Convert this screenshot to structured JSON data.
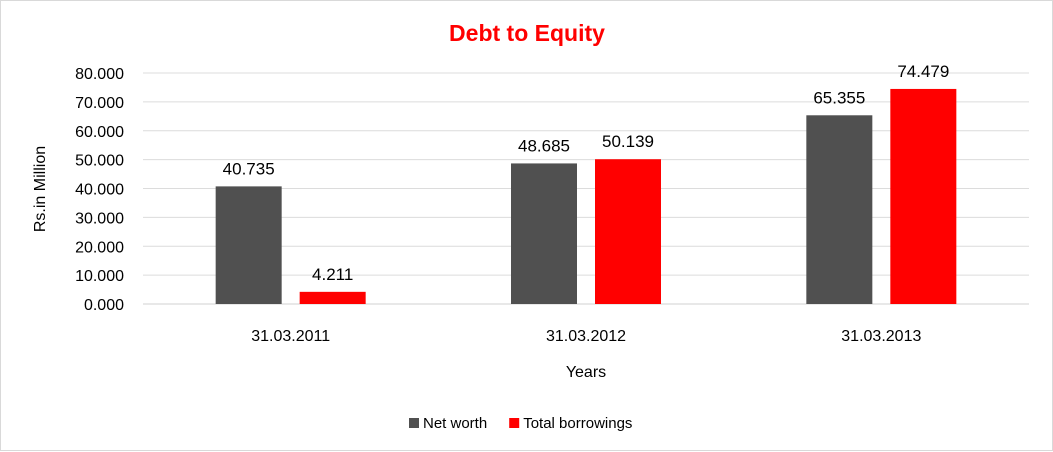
{
  "chart_data": {
    "type": "bar",
    "title": "Debt to Equity",
    "title_color": "#ff0000",
    "xlabel": "Years",
    "ylabel": "Rs.in Million",
    "ylim": [
      0,
      80
    ],
    "yticks": [
      "0.000",
      "10.000",
      "20.000",
      "30.000",
      "40.000",
      "50.000",
      "60.000",
      "70.000",
      "80.000"
    ],
    "categories": [
      "31.03.2011",
      "31.03.2012",
      "31.03.2013"
    ],
    "series": [
      {
        "name": "Net worth",
        "color": "#505050",
        "values": [
          40.735,
          48.685,
          65.355
        ],
        "labels": [
          "40.735",
          "48.685",
          "65.355"
        ]
      },
      {
        "name": "Total borrowings",
        "color": "#ff0000",
        "values": [
          4.211,
          50.139,
          74.479
        ],
        "labels": [
          "4.211",
          "50.139",
          "74.479"
        ]
      }
    ],
    "grid": true,
    "legend": "bottom"
  }
}
